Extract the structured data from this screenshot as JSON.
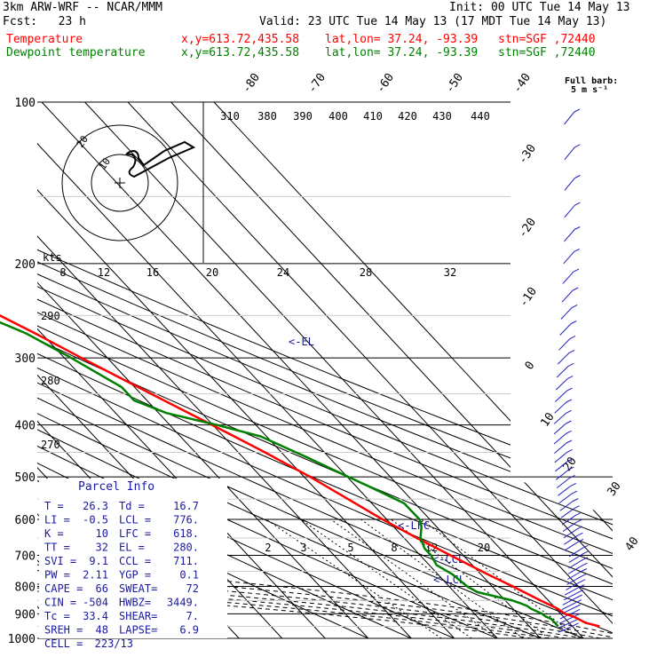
{
  "header": {
    "model": "3km ARW-WRF -- NCAR/MMM",
    "init": "Init: 00 UTC Tue 14 May 13",
    "fcst": "Fcst:   23 h",
    "valid": "Valid: 23 UTC Tue 14 May 13 (17 MDT Tue 14 May 13)",
    "temp_label": "Temperature",
    "dew_label": "Dewpoint temperature",
    "xy": "x,y=613.72,435.58",
    "latlon": "lat,lon= 37.24, -93.39",
    "stn": "stn=SGF ,72440",
    "temp_color": "#ff0000",
    "dew_color": "#008000"
  },
  "chart_data": {
    "type": "line",
    "title": "",
    "subtitle": "",
    "xlabel": "",
    "ylabel": "",
    "y_scale": "log",
    "pressure_ticks": [
      100,
      200,
      300,
      400,
      500,
      600,
      700,
      800,
      900,
      1000
    ],
    "pressure_labels": [
      "100",
      "200",
      "300",
      "400",
      "500",
      "600",
      "700",
      "800",
      "900",
      "1000"
    ],
    "isotherms": [
      -80,
      -70,
      -60,
      -50,
      -40,
      -30,
      -20,
      -10,
      0,
      10,
      20,
      30,
      40
    ],
    "isotherm_labels": [
      "-80",
      "-70",
      "-60",
      "-50",
      "-40",
      "-30",
      "-20",
      "-10",
      "0",
      "10",
      "20",
      "30",
      "40"
    ],
    "series": [
      {
        "name": "Temperature",
        "color": "#ff0000",
        "p": [
          950,
          935,
          910,
          900,
          880,
          850,
          800,
          760,
          700,
          650,
          600,
          550,
          500,
          450,
          400,
          350,
          300,
          270,
          250,
          230,
          210,
          200,
          180,
          160,
          140,
          125,
          110,
          100
        ],
        "t": [
          26.3,
          23.8,
          22.4,
          21.0,
          20.4,
          18.2,
          14.8,
          11.6,
          7.0,
          3.0,
          -1.0,
          -4.6,
          -8.6,
          -13.8,
          -20.2,
          -27.6,
          -36.0,
          -41.5,
          -45.8,
          -50.5,
          -56.0,
          -59.2,
          -64.4,
          -67.5,
          -66.5,
          -63.9,
          -61.1,
          -59.7
        ]
      },
      {
        "name": "Dewpoint temperature",
        "color": "#008000",
        "p": [
          950,
          935,
          920,
          910,
          900,
          880,
          870,
          860,
          850,
          820,
          800,
          760,
          730,
          700,
          680,
          650,
          620,
          600,
          560,
          520,
          500,
          460,
          420,
          400,
          380,
          360,
          340,
          300,
          270,
          240,
          220,
          200,
          180,
          160,
          140,
          125,
          110,
          100
        ],
        "t": [
          16.7,
          16.7,
          16.7,
          15.9,
          15.7,
          14.2,
          13.9,
          12.9,
          11.7,
          5.3,
          4.2,
          3.4,
          1.7,
          2.5,
          2.5,
          3.8,
          6.4,
          7.6,
          7.5,
          2.9,
          0.3,
          -5.1,
          -11.4,
          -19.1,
          -28.2,
          -33.0,
          -33.0,
          -38.4,
          -43.6,
          -52.8,
          -60.7,
          -67.1,
          -73.0,
          -77.9,
          -79.2,
          -80.5,
          -79.9,
          -79.9
        ]
      }
    ],
    "annotations": [
      "<-EL",
      "<-LFC",
      "<-CCL",
      "<-LCL"
    ],
    "theta_labels": [
      "310",
      "380",
      "390",
      "400",
      "410",
      "420",
      "430",
      "440"
    ],
    "theta_left_labels": [
      "290",
      "280",
      "270"
    ],
    "mixing_ratio_labels": [
      "2",
      "3",
      "5",
      "8",
      "12",
      "20"
    ],
    "hodograph_speed_labels": [
      "8",
      "12",
      "16",
      "20",
      "24",
      "28",
      "32"
    ],
    "hodograph_ring_labels": [
      "20",
      "10"
    ],
    "hodograph_units": "kts",
    "wind_barb_legend": [
      "Full barb:",
      "5 m s⁻¹"
    ],
    "parcel_info": {
      "title": "Parcel Info",
      "rows": [
        [
          "T  =",
          "26.3",
          "Td =",
          "16.7"
        ],
        [
          "LI =",
          "-0.5",
          "LCL =",
          "776."
        ],
        [
          "K  =",
          "10",
          "LFC =",
          "618."
        ],
        [
          "TT =",
          "32",
          "EL =",
          "280."
        ],
        [
          "SVI =",
          "9.1",
          "CCL =",
          "711."
        ],
        [
          "PW =",
          "2.11",
          "YGP =",
          "0.1"
        ],
        [
          "CAPE =",
          "66",
          "SWEAT=",
          "72"
        ],
        [
          "CIN =",
          "-504",
          "HWBZ=",
          "3449."
        ],
        [
          "Tc =",
          "33.4",
          "SHEAR=",
          "7."
        ],
        [
          "SREH =",
          "48",
          "LAPSE=",
          "6.9"
        ],
        [
          "CELL =",
          "223/13",
          "",
          ""
        ]
      ]
    }
  }
}
